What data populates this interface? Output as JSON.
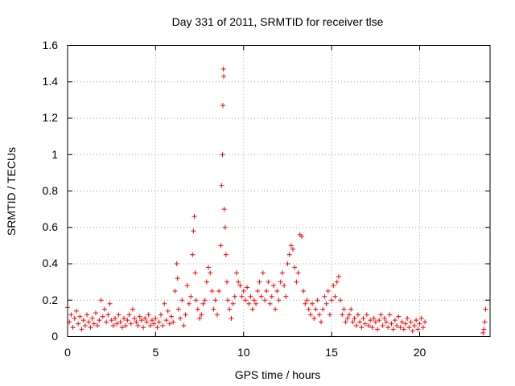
{
  "chart_data": {
    "type": "scatter",
    "title": "Day 331 of 2011, SRMTID for receiver tlse",
    "xlabel": "GPS time / hours",
    "ylabel": "SRMTID / TECUs",
    "xlim": [
      0,
      24
    ],
    "ylim": [
      0,
      1.6
    ],
    "xticks": [
      0,
      5,
      10,
      15,
      20
    ],
    "xtick_labels": [
      "0",
      "5",
      "10",
      "15",
      "20"
    ],
    "yticks": [
      0,
      0.2,
      0.4,
      0.6,
      0.8,
      1,
      1.2,
      1.4,
      1.6
    ],
    "ytick_labels": [
      "0",
      "0.2",
      "0.4",
      "0.6",
      "0.8",
      "1",
      "1.2",
      "1.4",
      "1.6"
    ],
    "grid": true,
    "marker": "+",
    "marker_color": "#ff0000",
    "series": [
      {
        "name": "SRMTID",
        "points": [
          [
            0.0,
            0.16
          ],
          [
            0.1,
            0.08
          ],
          [
            0.2,
            0.12
          ],
          [
            0.3,
            0.05
          ],
          [
            0.4,
            0.1
          ],
          [
            0.5,
            0.14
          ],
          [
            0.6,
            0.07
          ],
          [
            0.7,
            0.11
          ],
          [
            0.8,
            0.04
          ],
          [
            0.9,
            0.09
          ],
          [
            1.0,
            0.06
          ],
          [
            1.1,
            0.12
          ],
          [
            1.2,
            0.08
          ],
          [
            1.3,
            0.05
          ],
          [
            1.4,
            0.1
          ],
          [
            1.5,
            0.07
          ],
          [
            1.6,
            0.13
          ],
          [
            1.7,
            0.06
          ],
          [
            1.8,
            0.09
          ],
          [
            1.9,
            0.2
          ],
          [
            2.0,
            0.11
          ],
          [
            2.1,
            0.15
          ],
          [
            2.2,
            0.08
          ],
          [
            2.3,
            0.12
          ],
          [
            2.4,
            0.18
          ],
          [
            2.5,
            0.09
          ],
          [
            2.6,
            0.06
          ],
          [
            2.7,
            0.1
          ],
          [
            2.8,
            0.07
          ],
          [
            2.9,
            0.12
          ],
          [
            3.0,
            0.08
          ],
          [
            3.1,
            0.05
          ],
          [
            3.2,
            0.1
          ],
          [
            3.3,
            0.06
          ],
          [
            3.4,
            0.09
          ],
          [
            3.5,
            0.12
          ],
          [
            3.6,
            0.07
          ],
          [
            3.7,
            0.15
          ],
          [
            3.8,
            0.1
          ],
          [
            3.9,
            0.08
          ],
          [
            4.0,
            0.06
          ],
          [
            4.1,
            0.11
          ],
          [
            4.2,
            0.09
          ],
          [
            4.3,
            0.05
          ],
          [
            4.4,
            0.1
          ],
          [
            4.5,
            0.08
          ],
          [
            4.6,
            0.12
          ],
          [
            4.7,
            0.06
          ],
          [
            4.8,
            0.09
          ],
          [
            4.9,
            0.07
          ],
          [
            5.0,
            0.1
          ],
          [
            5.1,
            0.05
          ],
          [
            5.2,
            0.08
          ],
          [
            5.3,
            0.12
          ],
          [
            5.4,
            0.06
          ],
          [
            5.5,
            0.18
          ],
          [
            5.6,
            0.09
          ],
          [
            5.7,
            0.14
          ],
          [
            5.8,
            0.07
          ],
          [
            5.9,
            0.11
          ],
          [
            6.0,
            0.08
          ],
          [
            6.1,
            0.25
          ],
          [
            6.2,
            0.4
          ],
          [
            6.25,
            0.32
          ],
          [
            6.3,
            0.15
          ],
          [
            6.4,
            0.1
          ],
          [
            6.5,
            0.2
          ],
          [
            6.6,
            0.06
          ],
          [
            6.7,
            0.12
          ],
          [
            6.8,
            0.28
          ],
          [
            6.9,
            0.18
          ],
          [
            7.0,
            0.22
          ],
          [
            7.1,
            0.45
          ],
          [
            7.15,
            0.58
          ],
          [
            7.2,
            0.66
          ],
          [
            7.25,
            0.35
          ],
          [
            7.3,
            0.2
          ],
          [
            7.4,
            0.15
          ],
          [
            7.5,
            0.1
          ],
          [
            7.6,
            0.12
          ],
          [
            7.7,
            0.18
          ],
          [
            7.8,
            0.2
          ],
          [
            7.9,
            0.3
          ],
          [
            8.0,
            0.38
          ],
          [
            8.1,
            0.35
          ],
          [
            8.2,
            0.25
          ],
          [
            8.3,
            0.15
          ],
          [
            8.4,
            0.2
          ],
          [
            8.5,
            0.12
          ],
          [
            8.6,
            0.25
          ],
          [
            8.7,
            0.5
          ],
          [
            8.75,
            0.83
          ],
          [
            8.8,
            1.0
          ],
          [
            8.82,
            1.27
          ],
          [
            8.85,
            1.47
          ],
          [
            8.87,
            1.43
          ],
          [
            8.9,
            0.7
          ],
          [
            8.95,
            0.6
          ],
          [
            9.0,
            0.45
          ],
          [
            9.05,
            0.3
          ],
          [
            9.1,
            0.2
          ],
          [
            9.2,
            0.15
          ],
          [
            9.3,
            0.1
          ],
          [
            9.4,
            0.18
          ],
          [
            9.5,
            0.22
          ],
          [
            9.6,
            0.35
          ],
          [
            9.7,
            0.3
          ],
          [
            9.8,
            0.28
          ],
          [
            9.9,
            0.22
          ],
          [
            10.0,
            0.25
          ],
          [
            10.1,
            0.2
          ],
          [
            10.2,
            0.27
          ],
          [
            10.3,
            0.18
          ],
          [
            10.4,
            0.22
          ],
          [
            10.5,
            0.15
          ],
          [
            10.6,
            0.2
          ],
          [
            10.7,
            0.18
          ],
          [
            10.8,
            0.25
          ],
          [
            10.9,
            0.3
          ],
          [
            11.0,
            0.22
          ],
          [
            11.1,
            0.35
          ],
          [
            11.2,
            0.2
          ],
          [
            11.3,
            0.25
          ],
          [
            11.4,
            0.3
          ],
          [
            11.5,
            0.18
          ],
          [
            11.6,
            0.22
          ],
          [
            11.7,
            0.28
          ],
          [
            11.8,
            0.15
          ],
          [
            11.9,
            0.25
          ],
          [
            12.0,
            0.2
          ],
          [
            12.1,
            0.3
          ],
          [
            12.2,
            0.35
          ],
          [
            12.3,
            0.28
          ],
          [
            12.4,
            0.22
          ],
          [
            12.5,
            0.4
          ],
          [
            12.6,
            0.45
          ],
          [
            12.7,
            0.5
          ],
          [
            12.8,
            0.48
          ],
          [
            12.9,
            0.38
          ],
          [
            13.0,
            0.3
          ],
          [
            13.1,
            0.35
          ],
          [
            13.2,
            0.56
          ],
          [
            13.3,
            0.55
          ],
          [
            13.4,
            0.25
          ],
          [
            13.5,
            0.18
          ],
          [
            13.6,
            0.2
          ],
          [
            13.7,
            0.15
          ],
          [
            13.8,
            0.12
          ],
          [
            13.9,
            0.18
          ],
          [
            14.0,
            0.1
          ],
          [
            14.1,
            0.15
          ],
          [
            14.2,
            0.2
          ],
          [
            14.3,
            0.12
          ],
          [
            14.4,
            0.08
          ],
          [
            14.5,
            0.15
          ],
          [
            14.6,
            0.22
          ],
          [
            14.7,
            0.18
          ],
          [
            14.8,
            0.25
          ],
          [
            14.9,
            0.12
          ],
          [
            15.0,
            0.2
          ],
          [
            15.1,
            0.28
          ],
          [
            15.2,
            0.22
          ],
          [
            15.3,
            0.3
          ],
          [
            15.4,
            0.33
          ],
          [
            15.5,
            0.2
          ],
          [
            15.6,
            0.12
          ],
          [
            15.7,
            0.15
          ],
          [
            15.8,
            0.08
          ],
          [
            15.9,
            0.1
          ],
          [
            16.0,
            0.12
          ],
          [
            16.1,
            0.15
          ],
          [
            16.2,
            0.08
          ],
          [
            16.3,
            0.1
          ],
          [
            16.4,
            0.06
          ],
          [
            16.5,
            0.12
          ],
          [
            16.6,
            0.08
          ],
          [
            16.7,
            0.05
          ],
          [
            16.8,
            0.1
          ],
          [
            16.9,
            0.07
          ],
          [
            17.0,
            0.12
          ],
          [
            17.1,
            0.06
          ],
          [
            17.2,
            0.09
          ],
          [
            17.3,
            0.05
          ],
          [
            17.4,
            0.1
          ],
          [
            17.5,
            0.08
          ],
          [
            17.6,
            0.04
          ],
          [
            17.7,
            0.09
          ],
          [
            17.8,
            0.12
          ],
          [
            17.9,
            0.06
          ],
          [
            18.0,
            0.1
          ],
          [
            18.1,
            0.08
          ],
          [
            18.2,
            0.05
          ],
          [
            18.3,
            0.12
          ],
          [
            18.4,
            0.07
          ],
          [
            18.5,
            0.04
          ],
          [
            18.6,
            0.09
          ],
          [
            18.7,
            0.06
          ],
          [
            18.8,
            0.11
          ],
          [
            18.9,
            0.05
          ],
          [
            19.0,
            0.08
          ],
          [
            19.1,
            0.04
          ],
          [
            19.2,
            0.07
          ],
          [
            19.3,
            0.1
          ],
          [
            19.4,
            0.05
          ],
          [
            19.5,
            0.08
          ],
          [
            19.6,
            0.03
          ],
          [
            19.7,
            0.06
          ],
          [
            19.8,
            0.09
          ],
          [
            19.9,
            0.04
          ],
          [
            20.0,
            0.07
          ],
          [
            20.1,
            0.1
          ],
          [
            20.2,
            0.05
          ],
          [
            20.3,
            0.08
          ],
          [
            23.6,
            0.02
          ],
          [
            23.65,
            0.04
          ],
          [
            23.7,
            0.08
          ],
          [
            23.75,
            0.15
          ]
        ]
      }
    ]
  }
}
